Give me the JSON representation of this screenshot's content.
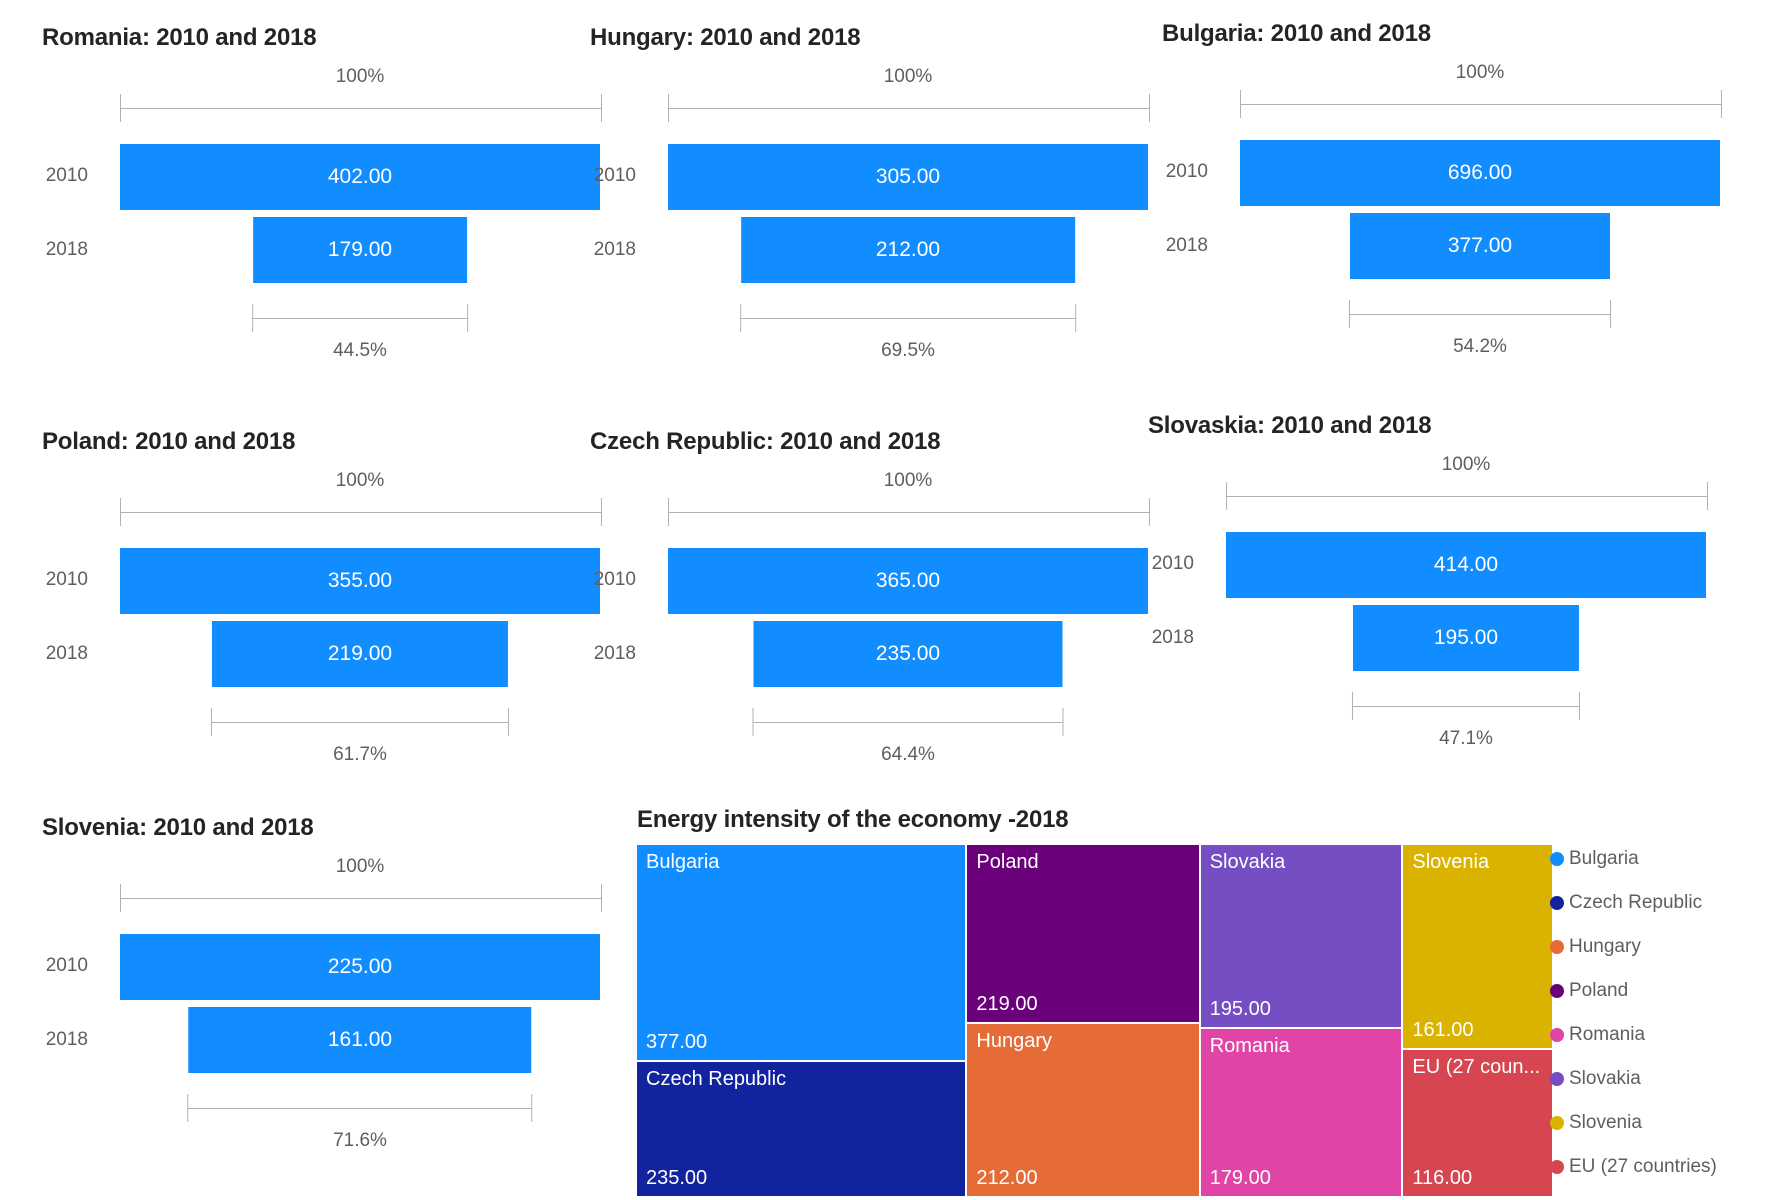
{
  "report": {
    "background": "#FFFFFF"
  },
  "styles": {
    "funnel_bar_color": "#118DFF",
    "title_color": "#252423",
    "label_color": "#605E5C",
    "bracket_color": "#B3B0AD"
  },
  "chart_data": [
    {
      "type": "funnel",
      "title": "Romania: 2010 and 2018",
      "categories": [
        "2010",
        "2018"
      ],
      "values": [
        402,
        179
      ],
      "value_labels": [
        "402.00",
        "179.00"
      ],
      "top_percent_label": "100%",
      "bottom_percent_label": "44.5%"
    },
    {
      "type": "funnel",
      "title": "Hungary: 2010 and 2018",
      "categories": [
        "2010",
        "2018"
      ],
      "values": [
        305,
        212
      ],
      "value_labels": [
        "305.00",
        "212.00"
      ],
      "top_percent_label": "100%",
      "bottom_percent_label": "69.5%"
    },
    {
      "type": "funnel",
      "title": "Bulgaria: 2010 and 2018",
      "categories": [
        "2010",
        "2018"
      ],
      "values": [
        696,
        377
      ],
      "value_labels": [
        "696.00",
        "377.00"
      ],
      "top_percent_label": "100%",
      "bottom_percent_label": "54.2%"
    },
    {
      "type": "funnel",
      "title": "Poland: 2010 and 2018",
      "categories": [
        "2010",
        "2018"
      ],
      "values": [
        355,
        219
      ],
      "value_labels": [
        "355.00",
        "219.00"
      ],
      "top_percent_label": "100%",
      "bottom_percent_label": "61.7%"
    },
    {
      "type": "funnel",
      "title": "Czech Republic: 2010 and 2018",
      "categories": [
        "2010",
        "2018"
      ],
      "values": [
        365,
        235
      ],
      "value_labels": [
        "365.00",
        "235.00"
      ],
      "top_percent_label": "100%",
      "bottom_percent_label": "64.4%"
    },
    {
      "type": "funnel",
      "title": "Slovaskia: 2010 and 2018",
      "categories": [
        "2010",
        "2018"
      ],
      "values": [
        414,
        195
      ],
      "value_labels": [
        "414.00",
        "195.00"
      ],
      "top_percent_label": "100%",
      "bottom_percent_label": "47.1%"
    },
    {
      "type": "funnel",
      "title": "Slovenia: 2010 and 2018",
      "categories": [
        "2010",
        "2018"
      ],
      "values": [
        225,
        161
      ],
      "value_labels": [
        "225.00",
        "161.00"
      ],
      "top_percent_label": "100%",
      "bottom_percent_label": "71.6%"
    },
    {
      "type": "treemap",
      "title": "Energy intensity of the economy -2018",
      "items": [
        {
          "name": "Bulgaria",
          "label": "Bulgaria",
          "value": 377,
          "value_label": "377.00",
          "color": "#118DFF"
        },
        {
          "name": "Czech Republic",
          "label": "Czech Republic",
          "value": 235,
          "value_label": "235.00",
          "color": "#12239E"
        },
        {
          "name": "Poland",
          "label": "Poland",
          "value": 219,
          "value_label": "219.00",
          "color": "#6B007B"
        },
        {
          "name": "Hungary",
          "label": "Hungary",
          "value": 212,
          "value_label": "212.00",
          "color": "#E66C37"
        },
        {
          "name": "Slovakia",
          "label": "Slovakia",
          "value": 195,
          "value_label": "195.00",
          "color": "#744EC2"
        },
        {
          "name": "Romania",
          "label": "Romania",
          "value": 179,
          "value_label": "179.00",
          "color": "#E044A7"
        },
        {
          "name": "Slovenia",
          "label": "Slovenia",
          "value": 161,
          "value_label": "161.00",
          "color": "#D9B300"
        },
        {
          "name": "EU (27 countries)",
          "label": "EU (27 coun...",
          "value": 116,
          "value_label": "116.00",
          "color": "#D64550"
        }
      ],
      "columns": [
        [
          0,
          1
        ],
        [
          2,
          3
        ],
        [
          4,
          5
        ],
        [
          6,
          7
        ]
      ],
      "legend": [
        {
          "label": "Bulgaria",
          "color": "#118DFF"
        },
        {
          "label": "Czech Republic",
          "color": "#12239E"
        },
        {
          "label": "Hungary",
          "color": "#E66C37"
        },
        {
          "label": "Poland",
          "color": "#6B007B"
        },
        {
          "label": "Romania",
          "color": "#E044A7"
        },
        {
          "label": "Slovakia",
          "color": "#744EC2"
        },
        {
          "label": "Slovenia",
          "color": "#D9B300"
        },
        {
          "label": "EU (27 countries)",
          "color": "#D64550"
        }
      ]
    }
  ]
}
